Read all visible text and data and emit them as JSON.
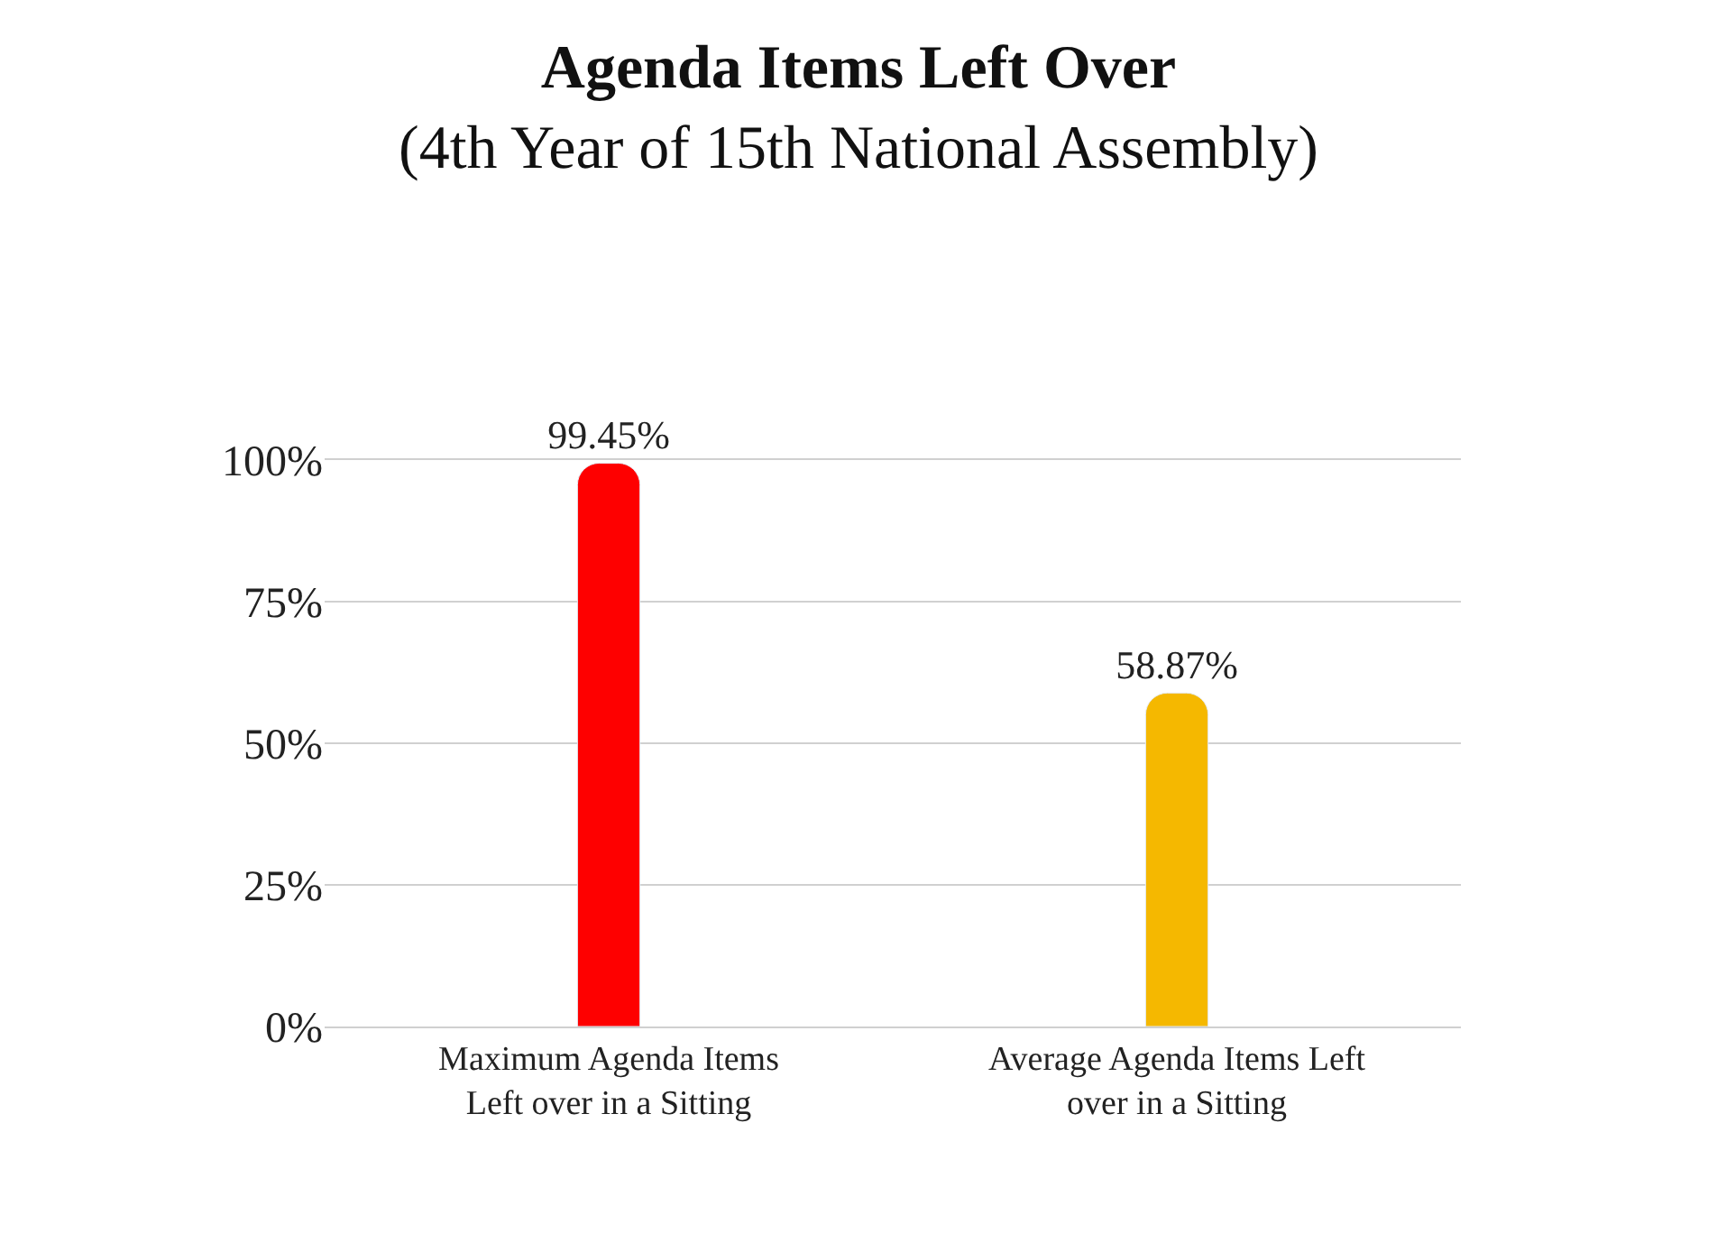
{
  "chart_data": {
    "type": "bar",
    "title": "Agenda Items Left Over",
    "subtitle": "(4th Year of 15th National Assembly)",
    "categories": [
      "Maximum Agenda Items\nLeft over in a Sitting",
      "Average Agenda Items Left\nover in a Sitting"
    ],
    "values": [
      99.45,
      58.87
    ],
    "colors": [
      "#fe0000",
      "#f5b800"
    ],
    "value_labels": [
      "99.45%",
      "58.87%"
    ],
    "ylim": [
      0,
      100
    ],
    "yticks": [
      {
        "value": 0,
        "label": "0%"
      },
      {
        "value": 25,
        "label": "25%"
      },
      {
        "value": 50,
        "label": "50%"
      },
      {
        "value": 75,
        "label": "75%"
      },
      {
        "value": 100,
        "label": "100%"
      }
    ],
    "grid": "y"
  }
}
